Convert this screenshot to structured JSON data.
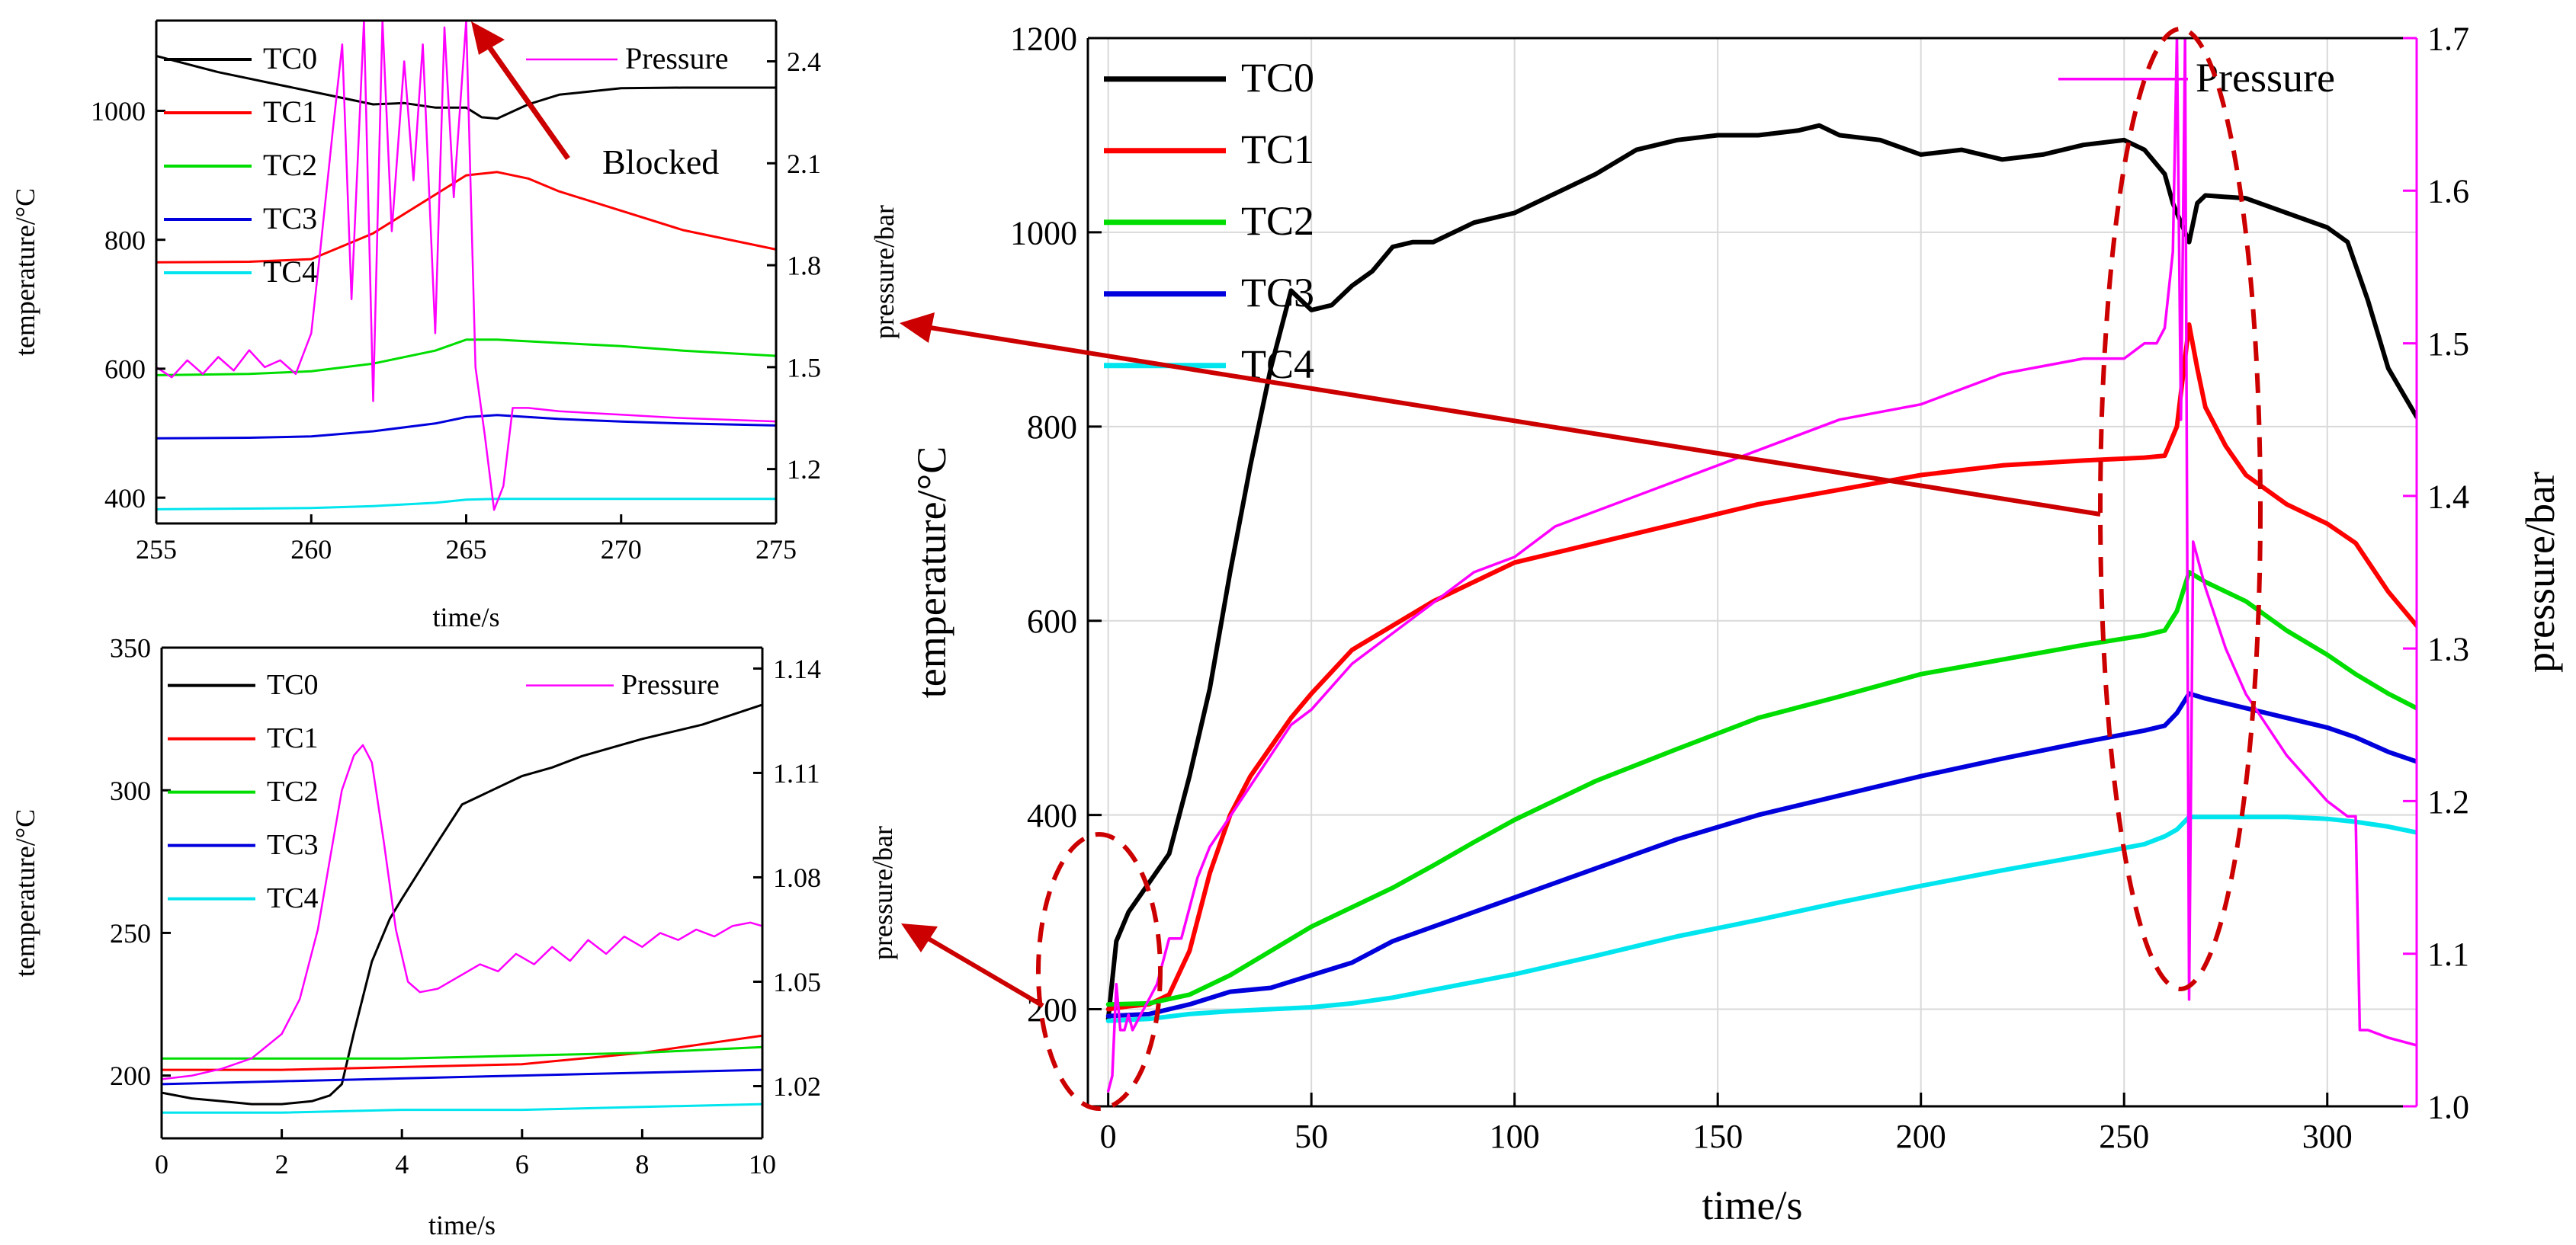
{
  "figure": {
    "annotation_blocked": "Blocked"
  },
  "chart_data": [
    {
      "id": "main",
      "type": "line",
      "xlabel": "time/s",
      "ylabel_left": "temperature/°C",
      "ylabel_right": "pressure/bar",
      "xlim": [
        -5,
        322
      ],
      "ylim_left": [
        100,
        1200
      ],
      "ylim_right": [
        1.0,
        1.7
      ],
      "xticks": [
        0,
        50,
        100,
        150,
        200,
        250,
        300
      ],
      "yticks_left": [
        200,
        400,
        600,
        800,
        1000,
        1200
      ],
      "yticks_right": [
        1.0,
        1.1,
        1.2,
        1.3,
        1.4,
        1.5,
        1.6,
        1.7
      ],
      "grid": true,
      "legend_left": "top-left",
      "legend_right": "top-right",
      "series": [
        {
          "name": "TC0",
          "color": "#000000",
          "axis": "left",
          "x": [
            0,
            2,
            5,
            10,
            15,
            20,
            25,
            30,
            35,
            40,
            45,
            50,
            55,
            60,
            65,
            70,
            75,
            80,
            90,
            100,
            110,
            120,
            130,
            140,
            150,
            160,
            170,
            175,
            180,
            190,
            200,
            210,
            220,
            230,
            240,
            250,
            255,
            260,
            262,
            264,
            266,
            268,
            270,
            280,
            290,
            300,
            305,
            310,
            315,
            322
          ],
          "y": [
            190,
            270,
            300,
            330,
            360,
            440,
            530,
            650,
            760,
            860,
            940,
            920,
            925,
            945,
            960,
            985,
            990,
            990,
            1010,
            1020,
            1040,
            1060,
            1085,
            1095,
            1100,
            1100,
            1105,
            1110,
            1100,
            1095,
            1080,
            1085,
            1075,
            1080,
            1090,
            1095,
            1085,
            1060,
            1030,
            1010,
            990,
            1030,
            1038,
            1035,
            1020,
            1005,
            990,
            930,
            860,
            810
          ]
        },
        {
          "name": "TC1",
          "color": "#ff0000",
          "axis": "left",
          "x": [
            0,
            5,
            10,
            15,
            20,
            25,
            30,
            35,
            40,
            45,
            50,
            60,
            70,
            80,
            90,
            100,
            120,
            140,
            160,
            180,
            200,
            220,
            240,
            255,
            260,
            263,
            266,
            268,
            270,
            275,
            280,
            290,
            300,
            307,
            315,
            322
          ],
          "y": [
            200,
            203,
            205,
            215,
            260,
            340,
            400,
            440,
            470,
            500,
            525,
            570,
            595,
            620,
            640,
            660,
            680,
            700,
            720,
            735,
            750,
            760,
            765,
            768,
            770,
            800,
            905,
            860,
            820,
            780,
            750,
            720,
            700,
            680,
            630,
            595
          ]
        },
        {
          "name": "TC2",
          "color": "#00dd00",
          "axis": "left",
          "x": [
            0,
            10,
            20,
            30,
            40,
            50,
            60,
            70,
            80,
            90,
            100,
            120,
            140,
            160,
            180,
            200,
            220,
            240,
            255,
            260,
            263,
            266,
            270,
            280,
            290,
            300,
            307,
            315,
            322
          ],
          "y": [
            205,
            206,
            215,
            235,
            260,
            285,
            305,
            325,
            348,
            372,
            395,
            435,
            468,
            500,
            522,
            545,
            560,
            575,
            585,
            590,
            610,
            650,
            640,
            620,
            590,
            565,
            545,
            525,
            510
          ]
        },
        {
          "name": "TC3",
          "color": "#0000dd",
          "axis": "left",
          "x": [
            0,
            10,
            20,
            30,
            40,
            50,
            60,
            70,
            80,
            90,
            100,
            120,
            140,
            160,
            180,
            200,
            220,
            240,
            255,
            260,
            263,
            266,
            270,
            280,
            290,
            300,
            307,
            315,
            322
          ],
          "y": [
            193,
            195,
            205,
            218,
            222,
            235,
            248,
            270,
            285,
            300,
            315,
            345,
            375,
            400,
            420,
            440,
            458,
            475,
            487,
            492,
            505,
            525,
            520,
            510,
            500,
            490,
            480,
            465,
            455
          ]
        },
        {
          "name": "TC4",
          "color": "#00e5ee",
          "axis": "left",
          "x": [
            0,
            10,
            20,
            30,
            40,
            50,
            60,
            70,
            80,
            90,
            100,
            120,
            140,
            160,
            180,
            200,
            220,
            240,
            255,
            260,
            263,
            266,
            270,
            280,
            290,
            300,
            307,
            315,
            322
          ],
          "y": [
            188,
            190,
            195,
            198,
            200,
            202,
            206,
            212,
            220,
            228,
            236,
            255,
            275,
            292,
            310,
            327,
            343,
            358,
            370,
            378,
            385,
            398,
            398,
            398,
            398,
            396,
            393,
            388,
            382
          ]
        },
        {
          "name": "Pressure",
          "color": "#ff00ff",
          "axis": "right",
          "x": [
            0,
            1,
            2,
            3,
            4,
            5,
            6,
            8,
            10,
            12,
            15,
            18,
            20,
            22,
            25,
            30,
            35,
            40,
            45,
            50,
            60,
            70,
            80,
            90,
            100,
            110,
            120,
            140,
            160,
            180,
            200,
            220,
            240,
            250,
            255,
            258,
            260,
            262,
            263,
            264,
            265,
            266,
            267,
            268,
            270,
            275,
            280,
            290,
            300,
            305,
            307,
            308,
            310,
            315,
            322
          ],
          "y": [
            1.01,
            1.02,
            1.08,
            1.05,
            1.05,
            1.06,
            1.05,
            1.06,
            1.07,
            1.08,
            1.11,
            1.11,
            1.13,
            1.15,
            1.17,
            1.19,
            1.21,
            1.23,
            1.25,
            1.26,
            1.29,
            1.31,
            1.33,
            1.35,
            1.36,
            1.38,
            1.39,
            1.41,
            1.43,
            1.45,
            1.46,
            1.48,
            1.49,
            1.49,
            1.5,
            1.5,
            1.51,
            1.56,
            1.7,
            1.45,
            1.7,
            1.07,
            1.37,
            1.36,
            1.34,
            1.3,
            1.27,
            1.23,
            1.2,
            1.19,
            1.19,
            1.05,
            1.05,
            1.045,
            1.04
          ]
        }
      ]
    },
    {
      "id": "inset_top",
      "type": "line",
      "xlabel": "time/s",
      "ylabel_left": "temperature/°C",
      "ylabel_right": "pressure/bar",
      "xlim": [
        255,
        275
      ],
      "ylim_left": [
        360,
        1140
      ],
      "ylim_right": [
        1.04,
        2.52
      ],
      "xticks": [
        255,
        260,
        265,
        270,
        275
      ],
      "yticks_left": [
        400,
        600,
        800,
        1000
      ],
      "yticks_right": [
        1.2,
        1.5,
        1.8,
        2.1,
        2.4
      ],
      "grid": false,
      "series": [
        {
          "name": "TC0",
          "color": "#000000",
          "axis": "left",
          "x": [
            255,
            257,
            259,
            261,
            262,
            263,
            264,
            265,
            265.5,
            266,
            267,
            268,
            270,
            272,
            275
          ],
          "y": [
            1085,
            1060,
            1040,
            1020,
            1010,
            1012,
            1005,
            1005,
            990,
            988,
            1010,
            1025,
            1035,
            1036,
            1036
          ]
        },
        {
          "name": "TC1",
          "color": "#ff0000",
          "axis": "left",
          "x": [
            255,
            258,
            260,
            261,
            262,
            263,
            264,
            265,
            266,
            267,
            268,
            270,
            272,
            275
          ],
          "y": [
            765,
            766,
            770,
            790,
            810,
            840,
            870,
            900,
            905,
            895,
            875,
            845,
            815,
            785
          ]
        },
        {
          "name": "TC2",
          "color": "#00dd00",
          "axis": "left",
          "x": [
            255,
            258,
            260,
            262,
            264,
            265,
            266,
            268,
            270,
            272,
            275
          ],
          "y": [
            590,
            592,
            596,
            608,
            628,
            645,
            645,
            640,
            635,
            628,
            620
          ]
        },
        {
          "name": "TC3",
          "color": "#0000dd",
          "axis": "left",
          "x": [
            255,
            258,
            260,
            262,
            264,
            265,
            266,
            268,
            270,
            272,
            275
          ],
          "y": [
            492,
            493,
            495,
            503,
            515,
            525,
            528,
            522,
            518,
            515,
            512
          ]
        },
        {
          "name": "TC4",
          "color": "#00e5ee",
          "axis": "left",
          "x": [
            255,
            258,
            260,
            262,
            264,
            265,
            266,
            268,
            270,
            272,
            275
          ],
          "y": [
            382,
            383,
            384,
            387,
            392,
            397,
            398,
            398,
            398,
            398,
            398
          ]
        },
        {
          "name": "Pressure",
          "color": "#ff00ff",
          "axis": "right",
          "x": [
            255,
            255.5,
            256,
            256.5,
            257,
            257.5,
            258,
            258.5,
            259,
            259.5,
            260,
            260.3,
            260.7,
            261,
            261.3,
            261.7,
            262,
            262.3,
            262.6,
            263,
            263.3,
            263.6,
            264,
            264.3,
            264.6,
            265,
            265.3,
            265.6,
            265.9,
            266.2,
            266.5,
            267,
            268,
            270,
            272,
            275
          ],
          "y": [
            1.5,
            1.47,
            1.52,
            1.48,
            1.53,
            1.49,
            1.55,
            1.5,
            1.52,
            1.48,
            1.6,
            1.85,
            2.2,
            2.45,
            1.7,
            2.52,
            1.4,
            2.52,
            1.9,
            2.4,
            2.05,
            2.45,
            1.6,
            2.5,
            2.0,
            2.52,
            1.5,
            1.3,
            1.08,
            1.15,
            1.38,
            1.38,
            1.37,
            1.36,
            1.35,
            1.34
          ]
        }
      ],
      "annotation": "Blocked"
    },
    {
      "id": "inset_bottom",
      "type": "line",
      "xlabel": "time/s",
      "ylabel_left": "temperature/°C",
      "ylabel_right": "pressure/bar",
      "xlim": [
        0,
        10
      ],
      "ylim_left": [
        178,
        350
      ],
      "ylim_right": [
        1.005,
        1.146
      ],
      "xticks": [
        0,
        2,
        4,
        6,
        8,
        10
      ],
      "yticks_left": [
        200,
        250,
        300,
        350
      ],
      "yticks_right": [
        1.02,
        1.05,
        1.08,
        1.11,
        1.14
      ],
      "grid": false,
      "series": [
        {
          "name": "TC0",
          "color": "#000000",
          "axis": "left",
          "x": [
            0,
            0.5,
            1,
            1.5,
            2,
            2.5,
            2.8,
            3.0,
            3.2,
            3.5,
            3.8,
            4.0,
            4.3,
            4.6,
            5.0,
            5.5,
            6.0,
            6.5,
            7.0,
            8.0,
            9.0,
            10.0
          ],
          "y": [
            194,
            192,
            191,
            190,
            190,
            191,
            193,
            197,
            215,
            240,
            255,
            262,
            272,
            282,
            295,
            300,
            305,
            308,
            312,
            318,
            323,
            330
          ]
        },
        {
          "name": "TC1",
          "color": "#ff0000",
          "axis": "left",
          "x": [
            0,
            2,
            4,
            6,
            8,
            10
          ],
          "y": [
            202,
            202,
            203,
            204,
            208,
            214
          ]
        },
        {
          "name": "TC2",
          "color": "#00dd00",
          "axis": "left",
          "x": [
            0,
            2,
            4,
            6,
            8,
            10
          ],
          "y": [
            206,
            206,
            206,
            207,
            208,
            210
          ]
        },
        {
          "name": "TC3",
          "color": "#0000dd",
          "axis": "left",
          "x": [
            0,
            2,
            4,
            6,
            8,
            10
          ],
          "y": [
            197,
            198,
            199,
            200,
            201,
            202
          ]
        },
        {
          "name": "TC4",
          "color": "#00e5ee",
          "axis": "left",
          "x": [
            0,
            2,
            4,
            6,
            8,
            10
          ],
          "y": [
            187,
            187,
            188,
            188,
            189,
            190
          ]
        },
        {
          "name": "Pressure",
          "color": "#ff00ff",
          "axis": "right",
          "x": [
            0,
            0.5,
            1,
            1.5,
            2,
            2.3,
            2.6,
            2.8,
            3.0,
            3.2,
            3.35,
            3.5,
            3.7,
            3.9,
            4.1,
            4.3,
            4.6,
            5.0,
            5.3,
            5.6,
            5.9,
            6.2,
            6.5,
            6.8,
            7.1,
            7.4,
            7.7,
            8.0,
            8.3,
            8.6,
            8.9,
            9.2,
            9.5,
            9.8,
            10.0
          ],
          "y": [
            1.022,
            1.023,
            1.025,
            1.028,
            1.035,
            1.045,
            1.065,
            1.085,
            1.105,
            1.115,
            1.118,
            1.113,
            1.09,
            1.065,
            1.05,
            1.047,
            1.048,
            1.052,
            1.055,
            1.053,
            1.058,
            1.055,
            1.06,
            1.056,
            1.062,
            1.058,
            1.063,
            1.06,
            1.064,
            1.062,
            1.065,
            1.063,
            1.066,
            1.067,
            1.066
          ]
        }
      ]
    }
  ]
}
